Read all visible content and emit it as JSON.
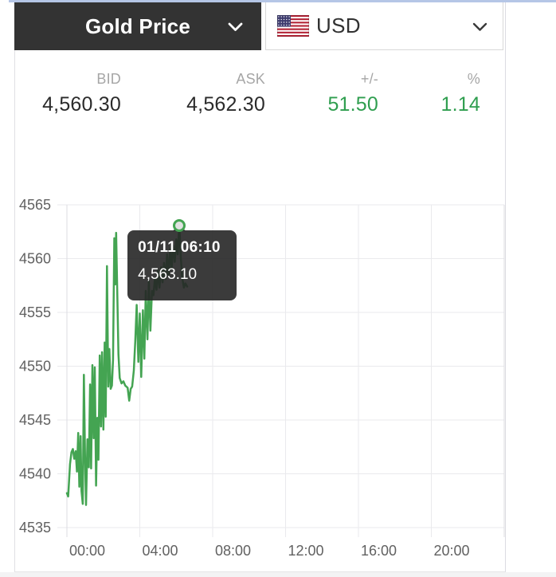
{
  "header": {
    "metal_selector": {
      "label": "Gold Price"
    },
    "currency_selector": {
      "label": "USD",
      "flag": "us-flag"
    }
  },
  "quote": {
    "columns": [
      {
        "label": "BID",
        "value": "4,560.30"
      },
      {
        "label": "ASK",
        "value": "4,562.30"
      },
      {
        "label": "+/-",
        "value": "51.50"
      },
      {
        "label": "%",
        "value": "1.14"
      }
    ]
  },
  "colors": {
    "accent_green": "#2f9e4f",
    "line_green": "#44a452",
    "header_bg": "#333333",
    "grid": "#eaeaed",
    "grid_edge": "#dcdce2",
    "axis_label": "#616161",
    "tooltip_bg": "rgba(38,38,38,0.9)"
  },
  "chart_data": {
    "type": "line",
    "title": "",
    "xlabel": "",
    "ylabel": "",
    "grid": true,
    "x_axis": {
      "ticks": [
        "00:00",
        "04:00",
        "08:00",
        "12:00",
        "16:00",
        "20:00"
      ],
      "range_hours": [
        0,
        24
      ]
    },
    "y_axis": {
      "ticks": [
        4565,
        4560,
        4555,
        4550,
        4545,
        4540,
        4535
      ],
      "range": [
        4535,
        4565
      ]
    },
    "series": [
      {
        "name": "Gold Price (USD)",
        "points": [
          [
            0.0,
            4538.2
          ],
          [
            0.07,
            4537.9
          ],
          [
            0.17,
            4540.9
          ],
          [
            0.25,
            4542.0
          ],
          [
            0.33,
            4542.3
          ],
          [
            0.4,
            4541.4
          ],
          [
            0.48,
            4542.1
          ],
          [
            0.55,
            4540.2
          ],
          [
            0.62,
            4543.8
          ],
          [
            0.68,
            4538.8
          ],
          [
            0.75,
            4543.5
          ],
          [
            0.8,
            4538.4
          ],
          [
            0.87,
            4537.2
          ],
          [
            0.93,
            4549.2
          ],
          [
            1.0,
            4540.9
          ],
          [
            1.05,
            4537.1
          ],
          [
            1.13,
            4543.2
          ],
          [
            1.2,
            4540.6
          ],
          [
            1.27,
            4548.3
          ],
          [
            1.33,
            4540.5
          ],
          [
            1.4,
            4550.1
          ],
          [
            1.47,
            4543.3
          ],
          [
            1.53,
            4549.9
          ],
          [
            1.6,
            4538.9
          ],
          [
            1.67,
            4545.2
          ],
          [
            1.73,
            4541.3
          ],
          [
            1.8,
            4551.0
          ],
          [
            1.87,
            4544.4
          ],
          [
            1.93,
            4551.3
          ],
          [
            2.0,
            4544.1
          ],
          [
            2.07,
            4552.2
          ],
          [
            2.13,
            4545.3
          ],
          [
            2.2,
            4559.3
          ],
          [
            2.27,
            4548.1
          ],
          [
            2.33,
            4551.6
          ],
          [
            2.4,
            4547.9
          ],
          [
            2.47,
            4548.2
          ],
          [
            2.53,
            4550.6
          ],
          [
            2.6,
            4561.9
          ],
          [
            2.65,
            4557.6
          ],
          [
            2.7,
            4562.4
          ],
          [
            2.77,
            4556.2
          ],
          [
            2.83,
            4551.1
          ],
          [
            2.9,
            4548.9
          ],
          [
            3.0,
            4548.4
          ],
          [
            3.1,
            4548.6
          ],
          [
            3.2,
            4548.2
          ],
          [
            3.33,
            4548.0
          ],
          [
            3.42,
            4546.8
          ],
          [
            3.5,
            4547.9
          ],
          [
            3.58,
            4548.1
          ],
          [
            3.67,
            4549.6
          ],
          [
            3.75,
            4552.3
          ],
          [
            3.83,
            4555.7
          ],
          [
            3.92,
            4550.4
          ],
          [
            4.0,
            4554.9
          ],
          [
            4.08,
            4549.0
          ],
          [
            4.17,
            4555.2
          ],
          [
            4.25,
            4550.7
          ],
          [
            4.33,
            4557.0
          ],
          [
            4.42,
            4552.5
          ],
          [
            4.5,
            4557.9
          ],
          [
            4.58,
            4553.3
          ],
          [
            4.67,
            4557.0
          ],
          [
            4.75,
            4556.6
          ],
          [
            4.83,
            4558.2
          ],
          [
            4.92,
            4557.1
          ],
          [
            5.0,
            4558.9
          ],
          [
            5.08,
            4557.3
          ],
          [
            5.17,
            4559.2
          ],
          [
            5.25,
            4557.8
          ],
          [
            5.33,
            4559.6
          ],
          [
            5.42,
            4558.1
          ],
          [
            5.5,
            4560.4
          ],
          [
            5.58,
            4558.4
          ],
          [
            5.67,
            4560.9
          ],
          [
            5.75,
            4559.1
          ],
          [
            5.83,
            4561.2
          ],
          [
            5.92,
            4559.7
          ],
          [
            6.0,
            4561.8
          ],
          [
            6.08,
            4560.4
          ],
          [
            6.17,
            4563.1
          ],
          [
            6.25,
            4560.1
          ],
          [
            6.33,
            4558.2
          ],
          [
            6.42,
            4557.3
          ],
          [
            6.5,
            4557.7
          ],
          [
            6.6,
            4557.4
          ]
        ]
      }
    ],
    "tooltip": {
      "datetime": "01/11 06:10",
      "value": "4,563.10",
      "point_time_hours": 6.17,
      "point_price": 4563.1
    }
  }
}
